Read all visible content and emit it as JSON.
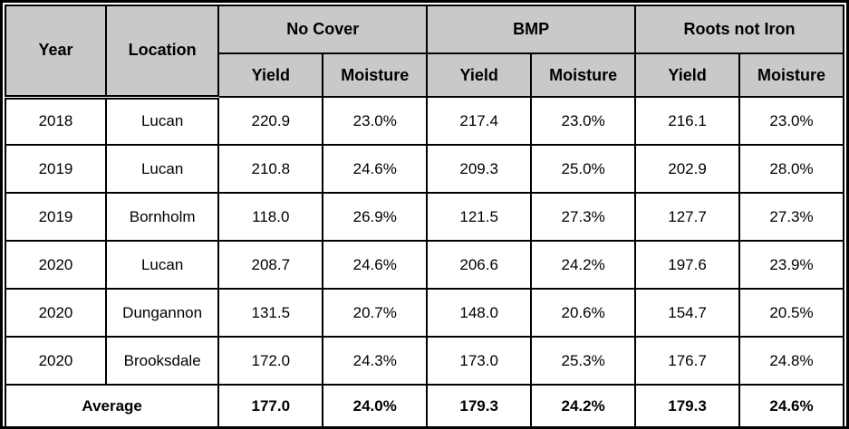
{
  "colors": {
    "header_bg": "#c9c9c9",
    "border": "#000000",
    "text": "#000000"
  },
  "table": {
    "fixed_columns": {
      "year": "Year",
      "location": "Location"
    },
    "groups": [
      {
        "label": "No Cover",
        "sub": {
          "yield": "Yield",
          "moisture": "Moisture"
        }
      },
      {
        "label": "BMP",
        "sub": {
          "yield": "Yield",
          "moisture": "Moisture"
        }
      },
      {
        "label": "Roots not Iron",
        "sub": {
          "yield": "Yield",
          "moisture": "Moisture"
        }
      }
    ],
    "rows": [
      {
        "year": "2018",
        "location": "Lucan",
        "values": [
          "220.9",
          "23.0%",
          "217.4",
          "23.0%",
          "216.1",
          "23.0%"
        ]
      },
      {
        "year": "2019",
        "location": "Lucan",
        "values": [
          "210.8",
          "24.6%",
          "209.3",
          "25.0%",
          "202.9",
          "28.0%"
        ]
      },
      {
        "year": "2019",
        "location": "Bornholm",
        "values": [
          "118.0",
          "26.9%",
          "121.5",
          "27.3%",
          "127.7",
          "27.3%"
        ]
      },
      {
        "year": "2020",
        "location": "Lucan",
        "values": [
          "208.7",
          "24.6%",
          "206.6",
          "24.2%",
          "197.6",
          "23.9%"
        ]
      },
      {
        "year": "2020",
        "location": "Dungannon",
        "values": [
          "131.5",
          "20.7%",
          "148.0",
          "20.6%",
          "154.7",
          "20.5%"
        ]
      },
      {
        "year": "2020",
        "location": "Brooksdale",
        "values": [
          "172.0",
          "24.3%",
          "173.0",
          "25.3%",
          "176.7",
          "24.8%"
        ]
      }
    ],
    "average": {
      "label": "Average",
      "values": [
        "177.0",
        "24.0%",
        "179.3",
        "24.2%",
        "179.3",
        "24.6%"
      ]
    }
  },
  "chart_data": {
    "type": "table",
    "title": "",
    "column_headers": [
      "Year",
      "Location",
      "No Cover Yield",
      "No Cover Moisture",
      "BMP Yield",
      "BMP Moisture",
      "Roots not Iron Yield",
      "Roots not Iron Moisture"
    ],
    "rows": [
      [
        "2018",
        "Lucan",
        220.9,
        "23.0%",
        217.4,
        "23.0%",
        216.1,
        "23.0%"
      ],
      [
        "2019",
        "Lucan",
        210.8,
        "24.6%",
        209.3,
        "25.0%",
        202.9,
        "28.0%"
      ],
      [
        "2019",
        "Bornholm",
        118.0,
        "26.9%",
        121.5,
        "27.3%",
        127.7,
        "27.3%"
      ],
      [
        "2020",
        "Lucan",
        208.7,
        "24.6%",
        206.6,
        "24.2%",
        197.6,
        "23.9%"
      ],
      [
        "2020",
        "Dungannon",
        131.5,
        "20.7%",
        148.0,
        "20.6%",
        154.7,
        "20.5%"
      ],
      [
        "2020",
        "Brooksdale",
        172.0,
        "24.3%",
        173.0,
        "25.3%",
        176.7,
        "24.8%"
      ],
      [
        "Average",
        "",
        177.0,
        "24.0%",
        179.3,
        "24.2%",
        179.3,
        "24.6%"
      ]
    ]
  }
}
